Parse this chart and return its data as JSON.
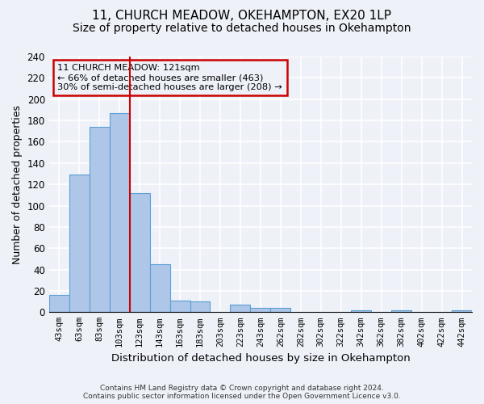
{
  "title": "11, CHURCH MEADOW, OKEHAMPTON, EX20 1LP",
  "subtitle": "Size of property relative to detached houses in Okehampton",
  "xlabel": "Distribution of detached houses by size in Okehampton",
  "ylabel": "Number of detached properties",
  "bar_values": [
    16,
    129,
    174,
    187,
    112,
    45,
    11,
    10,
    0,
    7,
    4,
    4,
    0,
    0,
    0,
    2,
    0,
    2,
    0,
    0,
    2
  ],
  "x_tick_labels": [
    "43sqm",
    "63sqm",
    "83sqm",
    "103sqm",
    "123sqm",
    "143sqm",
    "163sqm",
    "183sqm",
    "203sqm",
    "223sqm",
    "243sqm",
    "262sqm",
    "282sqm",
    "302sqm",
    "322sqm",
    "342sqm",
    "362sqm",
    "382sqm",
    "402sqm",
    "422sqm",
    "442sqm"
  ],
  "bar_color": "#aec6e8",
  "bar_edge_color": "#5a9fd4",
  "vline_x_index": 4,
  "vline_color": "#cc0000",
  "annotation_text": "11 CHURCH MEADOW: 121sqm\n← 66% of detached houses are smaller (463)\n30% of semi-detached houses are larger (208) →",
  "annotation_box_edge_color": "#cc0000",
  "ylim": [
    0,
    240
  ],
  "yticks": [
    0,
    20,
    40,
    60,
    80,
    100,
    120,
    140,
    160,
    180,
    200,
    220,
    240
  ],
  "footer_line1": "Contains HM Land Registry data © Crown copyright and database right 2024.",
  "footer_line2": "Contains public sector information licensed under the Open Government Licence v3.0.",
  "background_color": "#eef2f8",
  "axes_background_color": "#eef2f8",
  "grid_color": "#ffffff",
  "title_fontsize": 11,
  "subtitle_fontsize": 10
}
